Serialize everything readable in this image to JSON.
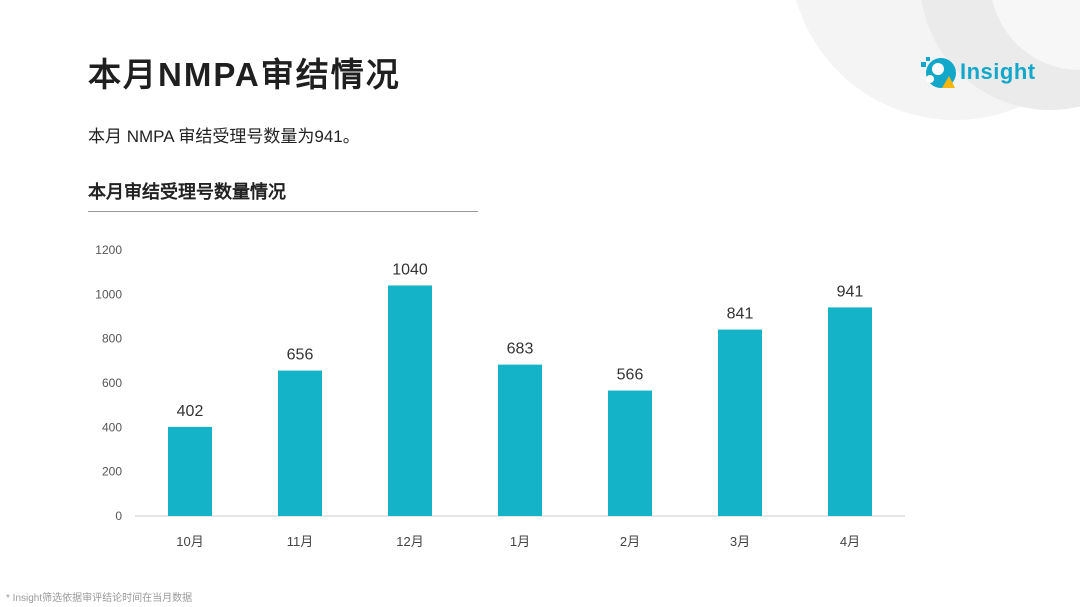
{
  "header": {
    "title": "本月NMPA审结情况",
    "summary": "本月 NMPA 审结受理号数量为941。",
    "logo_text": "Insight"
  },
  "footnote": "* Insight筛选依据审评结论时间在当月数据",
  "colors": {
    "bar": "#14b3c8",
    "brand": "#13a8c9",
    "accent": "#f5b50a"
  },
  "chart_data": {
    "type": "bar",
    "title": "本月审结受理号数量情况",
    "xlabel": "",
    "ylabel": "",
    "categories": [
      "10月",
      "11月",
      "12月",
      "1月",
      "2月",
      "3月",
      "4月"
    ],
    "values": [
      402,
      656,
      1040,
      683,
      566,
      841,
      941
    ],
    "ylim": [
      0,
      1200
    ],
    "yticks": [
      0,
      200,
      400,
      600,
      800,
      1000,
      1200
    ],
    "grid": false,
    "legend": "none"
  }
}
